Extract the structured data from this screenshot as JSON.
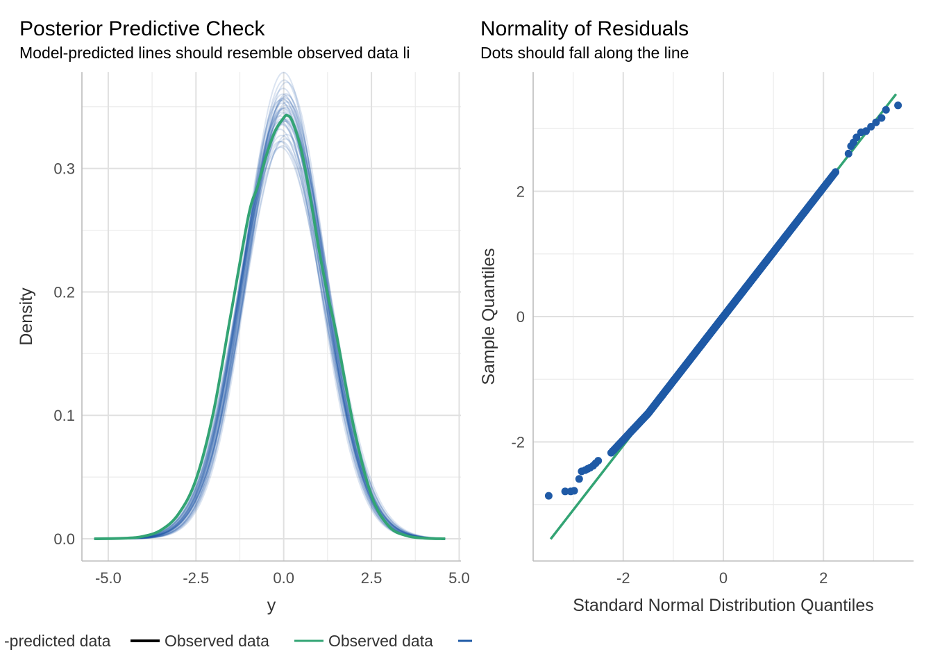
{
  "chart_data": [
    {
      "type": "line",
      "title": "Posterior Predictive Check",
      "subtitle": "Model-predicted lines should resemble observed data li",
      "xlabel": "y",
      "ylabel": "Density",
      "xlim": [
        -5.75,
        5.05
      ],
      "ylim": [
        -0.018,
        0.378
      ],
      "x_ticks": [
        -5.0,
        -2.5,
        0.0,
        2.5,
        5.0
      ],
      "x_tick_labels": [
        "-5.0",
        "-2.5",
        "0.0",
        "2.5",
        "5.0"
      ],
      "y_ticks": [
        0.0,
        0.1,
        0.2,
        0.3
      ],
      "y_tick_labels": [
        "0.0",
        "0.1",
        "0.2",
        "0.3"
      ],
      "grid": true,
      "series": [
        {
          "role": "observed",
          "color": "#33a474",
          "x": [
            -5.4,
            -4.5,
            -4.0,
            -3.5,
            -3.0,
            -2.5,
            -2.0,
            -1.5,
            -1.0,
            -0.75,
            -0.5,
            -0.25,
            0.0,
            0.1,
            0.25,
            0.5,
            0.75,
            1.0,
            1.25,
            1.5,
            2.0,
            2.5,
            3.0,
            3.5,
            4.0,
            4.6
          ],
          "y": [
            0.0,
            0.0005,
            0.002,
            0.007,
            0.02,
            0.048,
            0.103,
            0.183,
            0.262,
            0.285,
            0.31,
            0.33,
            0.341,
            0.343,
            0.338,
            0.315,
            0.278,
            0.235,
            0.198,
            0.166,
            0.09,
            0.035,
            0.01,
            0.0025,
            0.0005,
            0.0
          ]
        },
        {
          "role": "model-predicted",
          "color": "#1f5aa6",
          "draws": 40,
          "mean": 0.0,
          "sd": 1.16
        }
      ],
      "legend": {
        "placement": "bottom",
        "entries": [
          {
            "label": "-predicted data",
            "color": "#000000"
          },
          {
            "label": "Observed data",
            "color": "#000000"
          },
          {
            "label": "Observed data",
            "color": "#33a474"
          },
          {
            "label": "",
            "color": "#1f5aa6"
          }
        ]
      }
    },
    {
      "type": "scatter",
      "title": "Normality of Residuals",
      "subtitle": "Dots should fall along the line",
      "xlabel": "Standard Normal Distribution Quantiles",
      "ylabel": "Sample Quantiles",
      "xlim": [
        -3.8,
        3.8
      ],
      "ylim": [
        -3.9,
        3.9
      ],
      "x_ticks": [
        -2,
        0,
        2
      ],
      "x_tick_labels": [
        "-2",
        "0",
        "2"
      ],
      "y_ticks": [
        -2,
        0,
        2
      ],
      "y_tick_labels": [
        "-2",
        "0",
        "2"
      ],
      "grid": true,
      "point_color": "#1f5aa6",
      "line_color": "#33a474",
      "reference_line": [
        [
          -3.45,
          -3.55
        ],
        [
          3.45,
          3.55
        ]
      ],
      "n_points": 1000,
      "tail_points": [
        [
          -3.49,
          -2.86
        ],
        [
          -3.16,
          -2.79
        ],
        [
          -3.05,
          -2.79
        ],
        [
          -2.98,
          -2.78
        ],
        [
          -2.88,
          -2.59
        ],
        [
          -2.83,
          -2.47
        ],
        [
          -2.76,
          -2.45
        ],
        [
          -2.71,
          -2.43
        ],
        [
          -2.66,
          -2.41
        ],
        [
          -2.6,
          -2.38
        ],
        [
          -2.55,
          -2.34
        ],
        [
          -2.5,
          -2.3
        ],
        [
          2.5,
          2.6
        ],
        [
          2.55,
          2.72
        ],
        [
          2.6,
          2.78
        ],
        [
          2.66,
          2.86
        ],
        [
          2.75,
          2.94
        ],
        [
          2.85,
          2.96
        ],
        [
          2.95,
          3.03
        ],
        [
          3.05,
          3.1
        ],
        [
          3.16,
          3.17
        ],
        [
          3.25,
          3.3
        ],
        [
          3.49,
          3.37
        ]
      ]
    }
  ]
}
